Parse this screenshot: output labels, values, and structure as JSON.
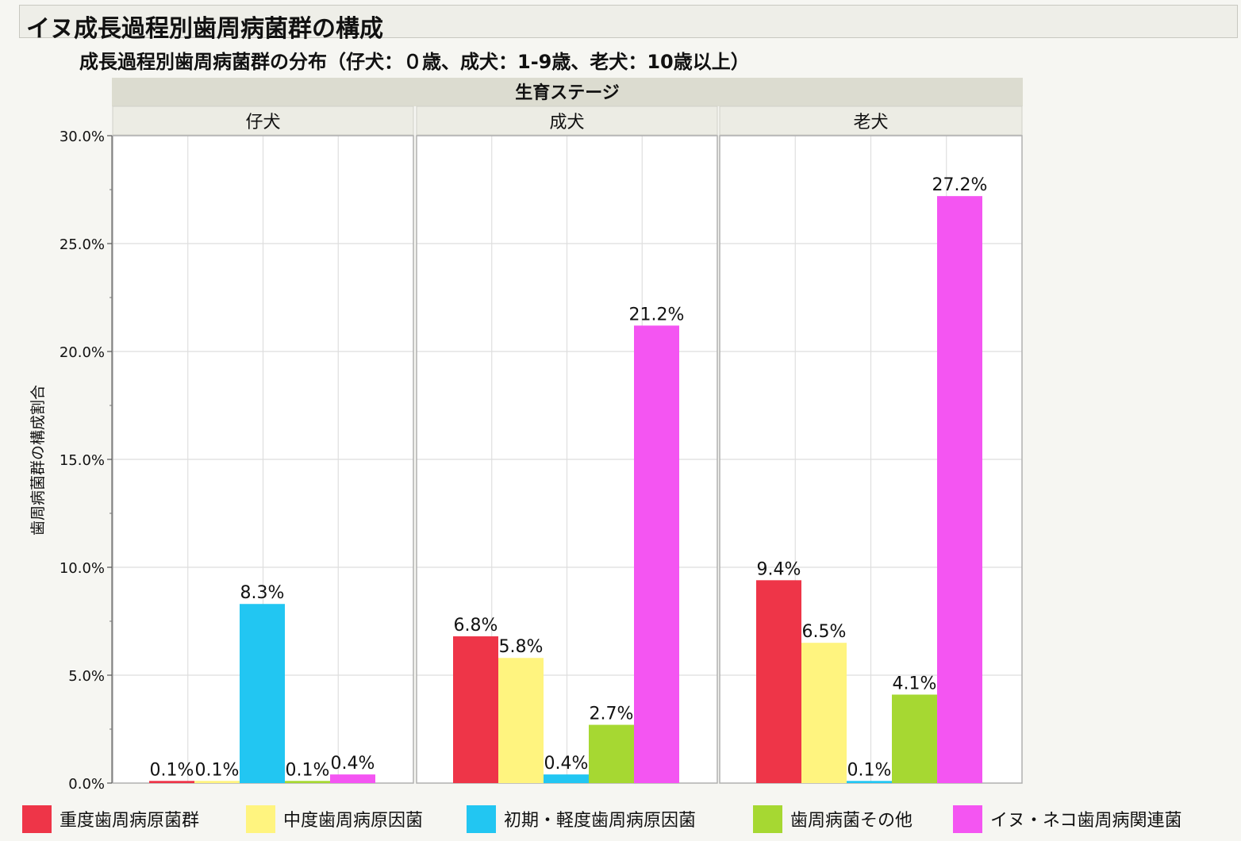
{
  "title": "イヌ成長過程別歯周病菌群の構成",
  "subtitle": "成長過程別歯周病菌群の分布（仔犬：０歳、成犬：1-9歳、老犬：10歳以上）",
  "colors": {
    "red": "#ee3548",
    "yellow": "#fff47f",
    "cyan": "#22c6f2",
    "green": "#a6d832",
    "magenta": "#f455f2"
  },
  "chart_data": {
    "type": "bar",
    "group_header": "生育ステージ",
    "categories": [
      "仔犬",
      "成犬",
      "老犬"
    ],
    "ylabel": "歯周病菌群の構成割合",
    "ylim": [
      0,
      30
    ],
    "yticks": [
      "0.0%",
      "5.0%",
      "10.0%",
      "15.0%",
      "20.0%",
      "25.0%",
      "30.0%"
    ],
    "grid": true,
    "legend_position": "bottom",
    "series": [
      {
        "name": "重度歯周病原菌群",
        "color": "#ee3548",
        "values": [
          0.1,
          6.8,
          9.4
        ],
        "labels": [
          "0.1%",
          "6.8%",
          "9.4%"
        ]
      },
      {
        "name": "中度歯周病原因菌",
        "color": "#fff47f",
        "values": [
          0.1,
          5.8,
          6.5
        ],
        "labels": [
          "0.1%",
          "5.8%",
          "6.5%"
        ]
      },
      {
        "name": "初期・軽度歯周病原因菌",
        "color": "#22c6f2",
        "values": [
          8.3,
          0.4,
          0.1
        ],
        "labels": [
          "8.3%",
          "0.4%",
          "0.1%"
        ]
      },
      {
        "name": "歯周病菌その他",
        "color": "#a6d832",
        "values": [
          0.1,
          2.7,
          4.1
        ],
        "labels": [
          "0.1%",
          "2.7%",
          "4.1%"
        ]
      },
      {
        "name": "イヌ・ネコ歯周病関連菌",
        "color": "#f455f2",
        "values": [
          0.4,
          21.2,
          27.2
        ],
        "labels": [
          "0.4%",
          "21.2%",
          "27.2%"
        ]
      }
    ]
  }
}
